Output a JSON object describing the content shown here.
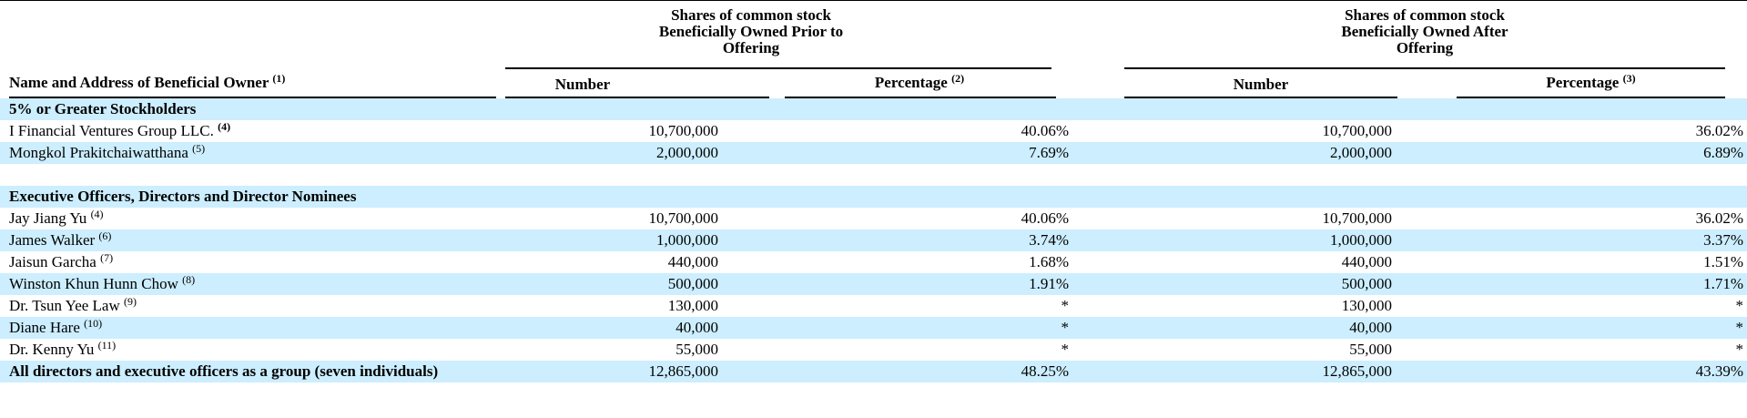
{
  "header": {
    "name_col": "Name and Address of Beneficial Owner",
    "name_col_note": "(1)",
    "prior_group": [
      "Shares of common stock",
      "Beneficially Owned Prior to",
      "Offering"
    ],
    "after_group": [
      "Shares of common stock",
      "Beneficially Owned After",
      "Offering"
    ],
    "prior_number": "Number",
    "prior_percentage": "Percentage",
    "prior_percentage_note": "(2)",
    "after_number": "Number",
    "after_percentage": "Percentage",
    "after_percentage_note": "(3)"
  },
  "rows": [
    {
      "kind": "section",
      "name": "5% or Greater Stockholders",
      "note": "",
      "shaded": true
    },
    {
      "kind": "data",
      "name": "I Financial Ventures Group LLC.",
      "note": "(4)",
      "note_bold": true,
      "num_prior": "10,700,000",
      "pct_prior": "40.06%",
      "num_after": "10,700,000",
      "pct_after": "36.02%",
      "shaded": false
    },
    {
      "kind": "data",
      "name": "Mongkol Prakitchaiwatthana",
      "note": "(5)",
      "num_prior": "2,000,000",
      "pct_prior": "7.69%",
      "num_after": "2,000,000",
      "pct_after": "6.89%",
      "shaded": true
    },
    {
      "kind": "blank",
      "shaded": false
    },
    {
      "kind": "section",
      "name": "Executive Officers, Directors and Director Nominees",
      "note": "",
      "shaded": true
    },
    {
      "kind": "data",
      "name": "Jay Jiang Yu",
      "note": "(4)",
      "num_prior": "10,700,000",
      "pct_prior": "40.06%",
      "num_after": "10,700,000",
      "pct_after": "36.02%",
      "shaded": false
    },
    {
      "kind": "data",
      "name": "James Walker",
      "note": "(6)",
      "num_prior": "1,000,000",
      "pct_prior": "3.74%",
      "num_after": "1,000,000",
      "pct_after": "3.37%",
      "shaded": true
    },
    {
      "kind": "data",
      "name": "Jaisun Garcha",
      "note": "(7)",
      "num_prior": "440,000",
      "pct_prior": "1.68%",
      "num_after": "440,000",
      "pct_after": "1.51%",
      "shaded": false
    },
    {
      "kind": "data",
      "name": "Winston Khun Hunn Chow",
      "note": "(8)",
      "num_prior": "500,000",
      "pct_prior": "1.91%",
      "num_after": "500,000",
      "pct_after": "1.71%",
      "shaded": true
    },
    {
      "kind": "data",
      "name": "Dr. Tsun Yee Law",
      "note": "(9)",
      "num_prior": "130,000",
      "pct_prior": "*",
      "num_after": "130,000",
      "pct_after": "*",
      "shaded": false
    },
    {
      "kind": "data",
      "name": "Diane Hare",
      "note": "(10)",
      "num_prior": "40,000",
      "pct_prior": "*",
      "num_after": "40,000",
      "pct_after": "*",
      "shaded": true
    },
    {
      "kind": "data",
      "name": "Dr. Kenny Yu",
      "note": "(11)",
      "num_prior": "55,000",
      "pct_prior": "*",
      "num_after": "55,000",
      "pct_after": "*",
      "shaded": false
    },
    {
      "kind": "total",
      "name": "All directors and executive officers as a group (seven individuals)",
      "note": "",
      "num_prior": "12,865,000",
      "pct_prior": "48.25%",
      "num_after": "12,865,000",
      "pct_after": "43.39%",
      "shaded": true
    }
  ]
}
